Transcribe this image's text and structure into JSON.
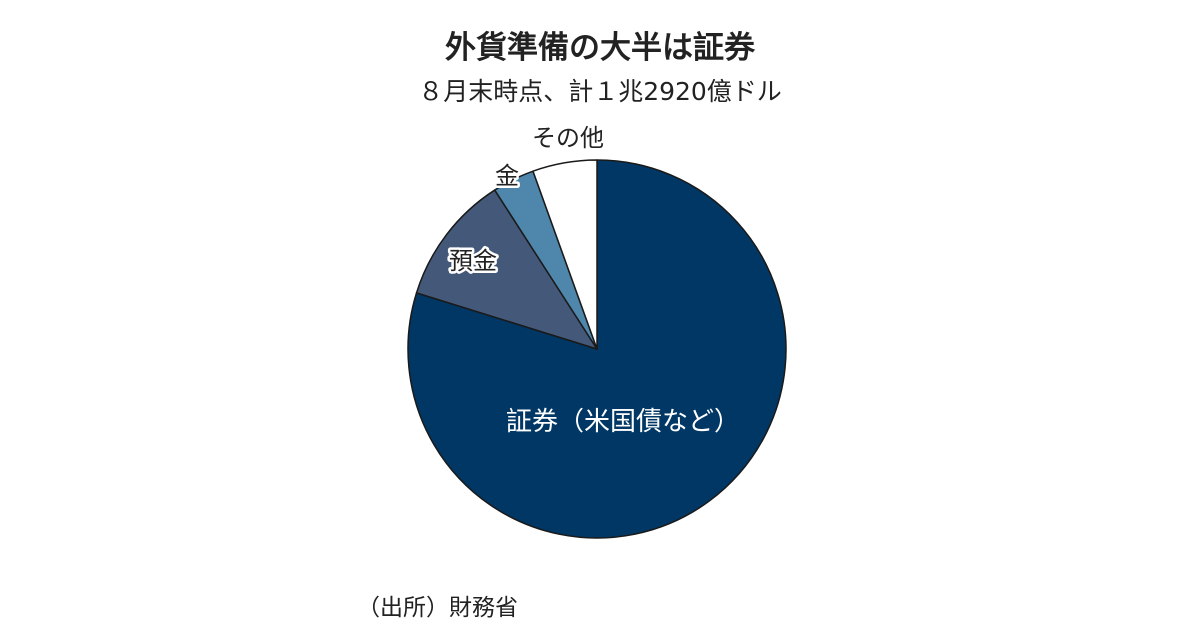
{
  "chart_data": {
    "type": "pie",
    "title": "外貨準備の大半は証券",
    "subtitle": "８月末時点、計１兆2920億ドル",
    "start_angle": "12 o'clock, clockwise",
    "slices": [
      {
        "label": "証券（米国債など）",
        "value": 79.8,
        "color": "#003764"
      },
      {
        "label": "預金",
        "value": 11.1,
        "color": "#44597a"
      },
      {
        "label": "金",
        "value": 3.6,
        "color": "#4f86ab"
      },
      {
        "label": "その他",
        "value": 5.5,
        "color": "#ffffff"
      }
    ],
    "source": "（出所）財務省"
  }
}
